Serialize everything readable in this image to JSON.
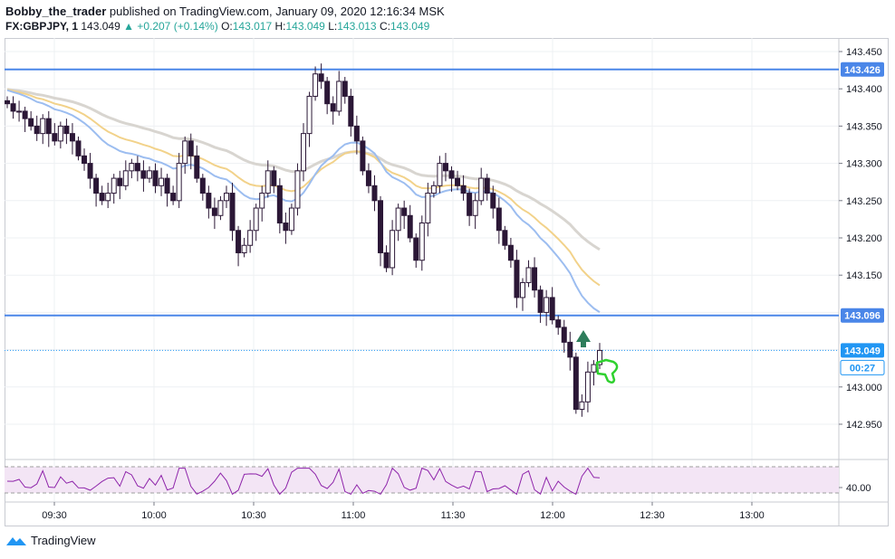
{
  "header": {
    "author": "Bobby_the_trader",
    "published": "published on TradingView.com, January 09, 2020 12:16:34 MSK",
    "symbol": "FX:GBPJPY, 1",
    "last": "143.049",
    "change": "▲ +0.207 (+0.14%)",
    "o_label": "O:",
    "o": "143.017",
    "h_label": "H:",
    "h": "143.049",
    "l_label": "L:",
    "l": "143.013",
    "c_label": "C:",
    "c": "143.049"
  },
  "price_axis": {
    "ticks": [
      "143.450",
      "143.400",
      "143.350",
      "143.300",
      "143.250",
      "143.200",
      "143.150",
      "143.000",
      "142.950"
    ],
    "levels": {
      "resistance": "143.426",
      "support": "143.096",
      "current": "143.049",
      "countdown": "00:27"
    }
  },
  "time_axis": [
    "09:30",
    "10:00",
    "10:30",
    "11:00",
    "11:30",
    "12:00",
    "12:30",
    "13:00"
  ],
  "rsi": {
    "tick": "40.00"
  },
  "footer": {
    "brand": "TradingView"
  },
  "colors": {
    "level_line": "#4a86e8",
    "current_price": "#2196f3",
    "bull": "#ffffff",
    "bear": "#2b1736",
    "rsi_line": "#8e24aa",
    "rsi_band": "#f3e5f5",
    "arrow_up": "#2e7d5b",
    "thumb": "#2fd12f"
  },
  "chart_data": {
    "type": "candlestick",
    "instrument": "FX:GBPJPY",
    "interval": "1",
    "ylim": [
      142.92,
      143.47
    ],
    "horizontal_levels": [
      143.426,
      143.096,
      143.049
    ],
    "x_ticks": [
      "09:30",
      "10:00",
      "10:30",
      "11:00",
      "11:30",
      "12:00",
      "12:30",
      "13:00"
    ],
    "close_series": [
      143.38,
      143.37,
      143.37,
      143.36,
      143.35,
      143.34,
      143.36,
      143.34,
      143.33,
      143.35,
      143.34,
      143.33,
      143.31,
      143.3,
      143.28,
      143.26,
      143.25,
      143.26,
      143.28,
      143.27,
      143.29,
      143.3,
      143.29,
      143.28,
      143.29,
      143.27,
      143.28,
      143.26,
      143.25,
      143.3,
      143.33,
      143.31,
      143.28,
      143.26,
      143.24,
      143.23,
      143.25,
      143.26,
      143.21,
      143.18,
      143.19,
      143.21,
      143.24,
      143.26,
      143.29,
      143.27,
      143.22,
      143.21,
      143.24,
      143.29,
      143.34,
      143.39,
      143.42,
      143.41,
      143.38,
      143.37,
      143.41,
      143.39,
      143.35,
      143.33,
      143.29,
      143.27,
      143.25,
      143.18,
      143.16,
      143.21,
      143.24,
      143.23,
      143.2,
      143.17,
      143.22,
      143.26,
      143.27,
      143.3,
      143.29,
      143.28,
      143.27,
      143.26,
      143.23,
      143.25,
      143.28,
      143.26,
      143.24,
      143.21,
      143.19,
      143.17,
      143.12,
      143.14,
      143.16,
      143.13,
      143.1,
      143.12,
      143.09,
      143.08,
      143.06,
      143.04,
      142.97,
      142.98,
      143.02,
      143.03,
      143.049
    ]
  }
}
